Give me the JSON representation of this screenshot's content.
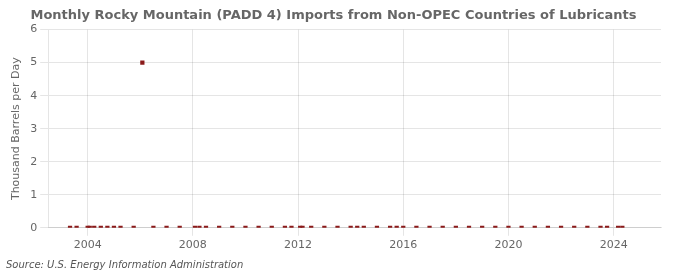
{
  "chart_data": {
    "type": "scatter",
    "title": "Monthly Rocky Mountain (PADD 4) Imports from Non-OPEC Countries of Lubricants",
    "ylabel": "Thousand Barrels per Day",
    "source": "Source: U.S. Energy Information Administration",
    "color": "#8b1a1a",
    "marker": "square",
    "grid": true,
    "xlim": [
      2002.5,
      2025.8
    ],
    "xticks": [
      2004,
      2008,
      2012,
      2016,
      2020,
      2024
    ],
    "ylim": [
      0,
      6
    ],
    "yticks": [
      0,
      1,
      2,
      3,
      4,
      5,
      6
    ],
    "x": [
      2003.33,
      2003.58,
      2004.0,
      2004.08,
      2004.25,
      2004.5,
      2004.75,
      2005.0,
      2005.25,
      2005.75,
      2006.08,
      2006.5,
      2007.0,
      2007.5,
      2008.08,
      2008.25,
      2008.5,
      2009.0,
      2009.5,
      2010.0,
      2010.5,
      2011.0,
      2011.5,
      2011.75,
      2012.08,
      2012.17,
      2012.5,
      2013.0,
      2013.5,
      2014.0,
      2014.25,
      2014.5,
      2015.0,
      2015.5,
      2015.75,
      2016.0,
      2016.5,
      2017.0,
      2017.5,
      2018.0,
      2018.5,
      2019.0,
      2019.5,
      2020.0,
      2020.5,
      2021.0,
      2021.5,
      2022.0,
      2022.5,
      2023.0,
      2023.5,
      2023.75,
      2024.17,
      2024.33
    ],
    "values": [
      0.0,
      0.0,
      0.0,
      0.0,
      0.0,
      0.0,
      0.0,
      0.0,
      0.0,
      0.0,
      5.0,
      0.0,
      0.0,
      0.0,
      0.0,
      0.0,
      0.0,
      0.0,
      0.0,
      0.0,
      0.0,
      0.0,
      0.0,
      0.0,
      0.0,
      0.0,
      0.0,
      0.0,
      0.0,
      0.0,
      0.0,
      0.0,
      0.0,
      0.0,
      0.0,
      0.0,
      0.0,
      0.0,
      0.0,
      0.0,
      0.0,
      0.0,
      0.0,
      0.0,
      0.0,
      0.0,
      0.0,
      0.0,
      0.0,
      0.0,
      0.0,
      0.0,
      0.0,
      0.0
    ]
  }
}
